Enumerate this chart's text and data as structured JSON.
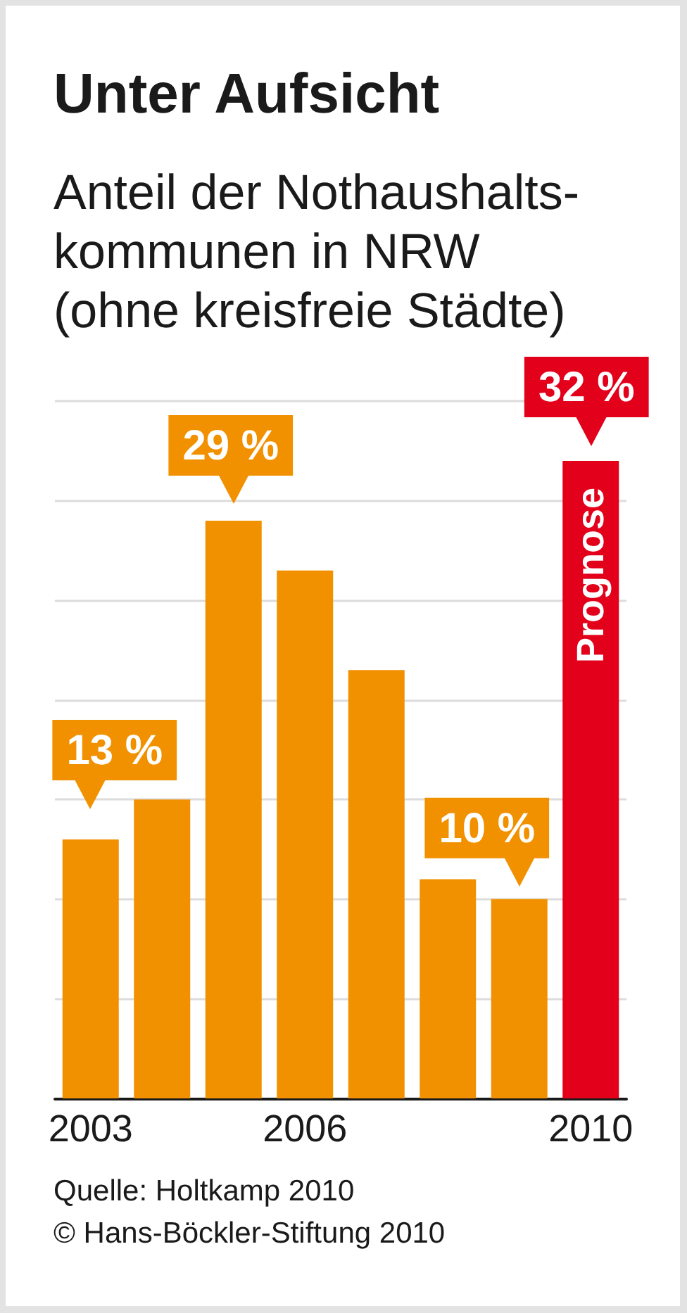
{
  "chart_data": {
    "type": "bar",
    "title": "Unter Aufsicht",
    "subtitle": "Anteil der Nothaushalts-\nkommunen in NRW\n(ohne kreisfreie Städte)",
    "categories": [
      "2003",
      null,
      null,
      "2006",
      null,
      null,
      null,
      "2010"
    ],
    "values": [
      13,
      15,
      29,
      26.5,
      21.5,
      11,
      10,
      32
    ],
    "colors": [
      "#f29100",
      "#f29100",
      "#f29100",
      "#f29100",
      "#f29100",
      "#f29100",
      "#f29100",
      "#e2001a"
    ],
    "value_labels": [
      "13 %",
      null,
      "29 %",
      null,
      null,
      null,
      "10 %",
      "32 %"
    ],
    "ylim": [
      0,
      35
    ],
    "yticks": [
      {
        "value": 0,
        "label": null
      },
      {
        "value": 5,
        "label": null
      },
      {
        "value": 10,
        "label": null
      },
      {
        "value": 15,
        "label": null
      },
      {
        "value": 20,
        "label": null
      },
      {
        "value": 25,
        "label": null
      },
      {
        "value": 30,
        "label": null
      },
      {
        "value": 35,
        "label": null
      }
    ],
    "grid": "y",
    "tick_labels": "x",
    "annotations": [
      "Prognose",
      "Quelle: Holtkamp 2010",
      "© Hans-Böckler-Stiftung 2010"
    ]
  }
}
